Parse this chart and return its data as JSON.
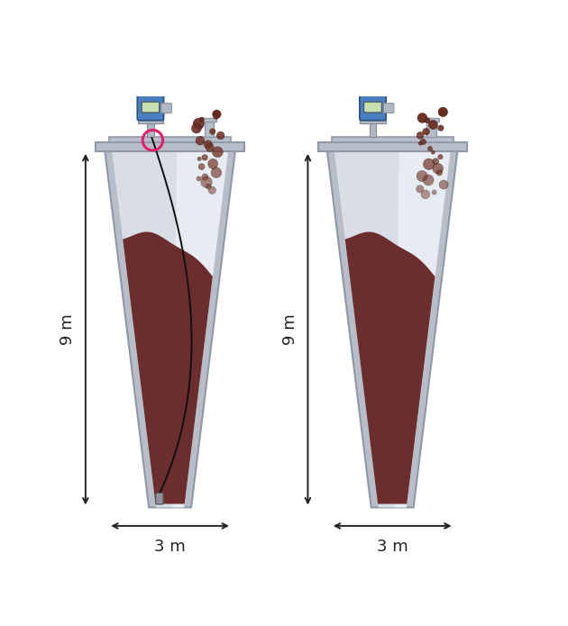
{
  "bg_color": "#ffffff",
  "silo_fill_color": "#6b2d2d",
  "silo_wall_outer": "#b8bec8",
  "silo_wall_inner": "#d8dde6",
  "silo_wall_light": "#e8ecf2",
  "silo_wall_edge": "#9098a8",
  "powder_color": "#6b2d20",
  "powder_edge": "#3a1810",
  "device_blue": "#4a7fbf",
  "device_silver": "#b0b8c4",
  "device_edge": "#888898",
  "screen_color": "#c8e0b0",
  "arrow_color": "#222222",
  "cable_color": "#111111",
  "circle_color": "#e0206a",
  "text_color": "#222222",
  "dim_9m": "9 m",
  "dim_3m": "3 m"
}
